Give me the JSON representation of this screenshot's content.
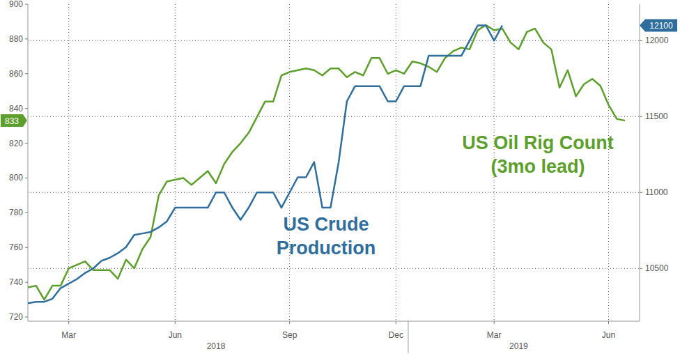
{
  "chart_data": {
    "type": "line",
    "categories": [
      null,
      null,
      null,
      null,
      null,
      "Mar",
      null,
      null,
      null,
      null,
      null,
      null,
      null,
      null,
      null,
      null,
      null,
      null,
      "Jun",
      null,
      null,
      null,
      null,
      null,
      null,
      null,
      null,
      null,
      null,
      null,
      null,
      null,
      "Sep",
      null,
      null,
      null,
      null,
      null,
      null,
      null,
      null,
      null,
      null,
      null,
      null,
      "Dec",
      null,
      null,
      null,
      null,
      null,
      null,
      null,
      null,
      null,
      null,
      null,
      "Mar",
      null,
      null,
      null,
      null,
      null,
      null,
      null,
      null,
      null,
      null,
      null,
      null,
      null,
      "Jun",
      null,
      null
    ],
    "x_group_labels": [
      {
        "label": "2018",
        "start": 0,
        "end": 46
      },
      {
        "label": "2019",
        "start": 47,
        "end": 73
      }
    ],
    "series": [
      {
        "name": "US Oil Rig Count (3mo lead)",
        "color": "#5d9f2c",
        "axis": "y",
        "values": [
          737,
          738,
          730,
          738,
          738,
          748,
          750,
          752,
          747,
          747,
          747,
          742,
          753,
          748,
          759,
          766,
          790,
          798,
          799,
          800,
          796,
          800,
          804,
          797,
          808,
          815,
          820,
          826,
          835,
          844,
          844,
          859,
          861,
          862,
          863,
          862,
          859,
          863,
          863,
          858,
          861,
          859,
          869,
          869,
          860,
          862,
          860,
          867,
          866,
          864,
          861,
          869,
          873,
          875,
          874,
          885,
          888,
          885,
          886,
          878,
          874,
          884,
          886,
          878,
          874,
          852,
          862,
          847,
          854,
          857,
          853,
          842,
          834,
          833
        ]
      },
      {
        "name": "US Crude Production",
        "color": "#2f6e9c",
        "axis": "y2",
        "values": [
          10270,
          10280,
          10280,
          10300,
          10370,
          10400,
          10430,
          10470,
          10500,
          10550,
          10570,
          10600,
          10640,
          10720,
          10730,
          10740,
          10770,
          10810,
          10900,
          10900,
          10900,
          10900,
          10900,
          11000,
          11000,
          10900,
          10820,
          10900,
          11000,
          11000,
          11000,
          10900,
          11000,
          11100,
          11100,
          11200,
          10900,
          10900,
          11200,
          11600,
          11700,
          11700,
          11700,
          11700,
          11600,
          11600,
          11700,
          11700,
          11700,
          11900,
          11900,
          11900,
          11900,
          11900,
          12000,
          12100,
          12100,
          12000,
          12100,
          null,
          null,
          null,
          null,
          null,
          null,
          null,
          null,
          null,
          null,
          null,
          null,
          null,
          null,
          null
        ]
      }
    ],
    "ylim": [
      720,
      900
    ],
    "yticks": [
      720,
      740,
      760,
      780,
      800,
      820,
      840,
      860,
      880,
      900
    ],
    "y2lim": [
      10180,
      12240
    ],
    "y2ticks": [
      10500,
      11000,
      11500,
      12000
    ],
    "annotations": [
      {
        "text": "833",
        "value": 833,
        "axis": "y"
      },
      {
        "text": "12100",
        "value": 12100,
        "axis": "y2"
      }
    ],
    "grid": true
  }
}
